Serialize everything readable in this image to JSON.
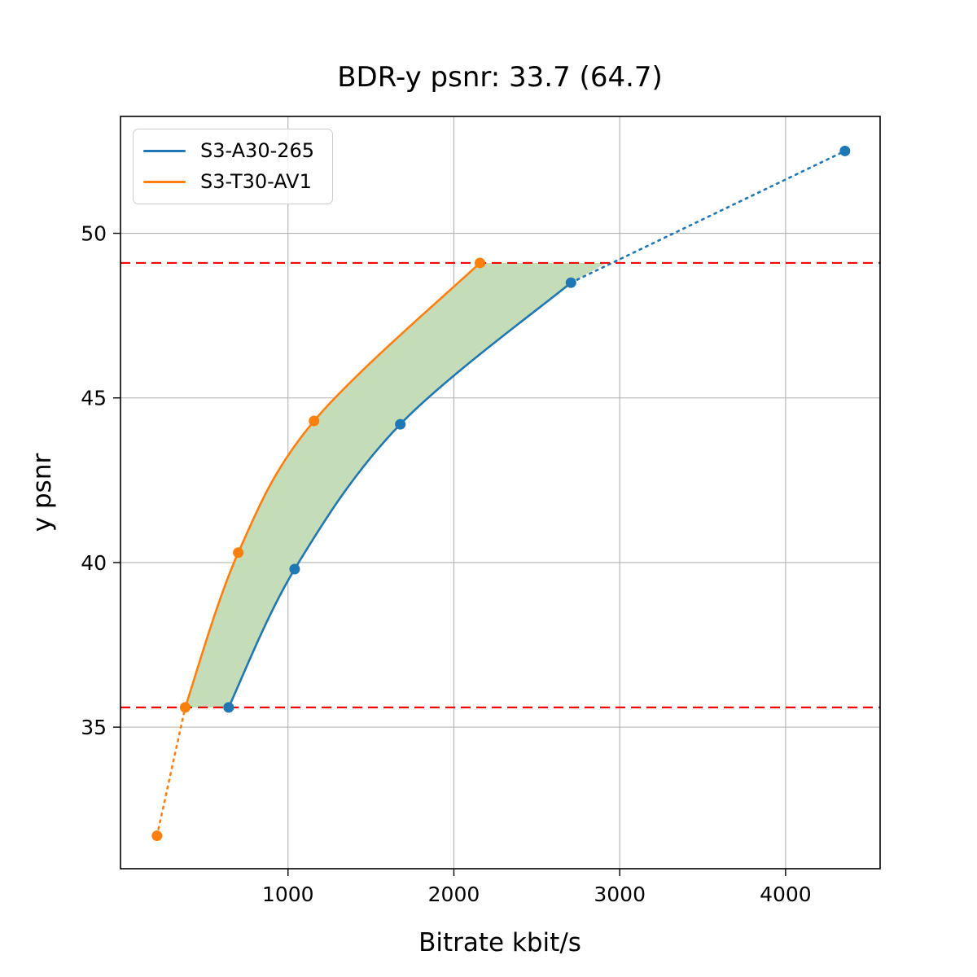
{
  "chart_data": {
    "type": "line",
    "title": "BDR-y psnr: 33.7 (64.7)",
    "xlabel": "Bitrate kbit/s",
    "ylabel": "y psnr",
    "xlim": [
      -10,
      4570
    ],
    "ylim": [
      30.7,
      53.55
    ],
    "xticks": [
      1000,
      2000,
      3000,
      4000
    ],
    "yticks": [
      35,
      40,
      45,
      50
    ],
    "grid": true,
    "legend_position": "upper-left",
    "colors": {
      "grid": "#b0b0b0",
      "axis": "#000000",
      "overlap_line": "#ff0000",
      "fill": "#c5dcb8"
    },
    "series": [
      {
        "name": "S3-A30-265",
        "color": "#1f77b4",
        "points": [
          [
            642,
            35.6
          ],
          [
            1040,
            39.8
          ],
          [
            1677,
            44.2
          ],
          [
            2706,
            48.5
          ]
        ],
        "dotted_extension": [
          [
            2706,
            48.5
          ],
          [
            4358,
            52.5
          ]
        ]
      },
      {
        "name": "S3-T30-AV1",
        "color": "#ff7f0e",
        "points": [
          [
            380,
            35.6
          ],
          [
            700,
            40.3
          ],
          [
            1157,
            44.3
          ],
          [
            2157,
            49.1
          ]
        ],
        "dotted_extension": [
          [
            210,
            31.7
          ],
          [
            380,
            35.6
          ]
        ]
      }
    ],
    "overlap_lines": {
      "y_low": 35.6,
      "y_high": 49.1
    },
    "bd_region": {
      "between": [
        "S3-T30-AV1",
        "S3-A30-265"
      ],
      "top_right_x": 2920
    }
  }
}
